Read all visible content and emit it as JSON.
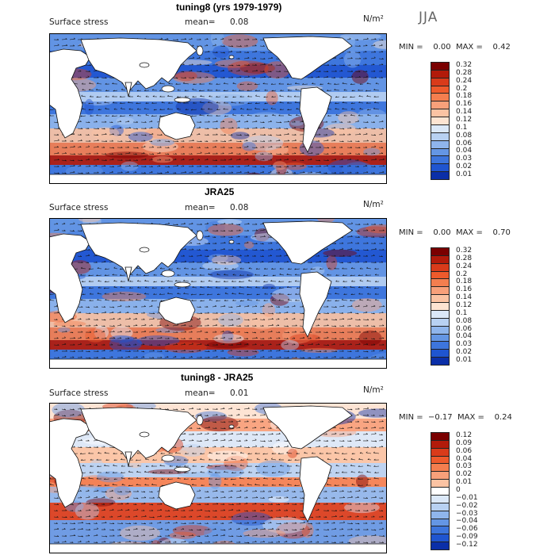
{
  "season": "JJA",
  "panels": [
    {
      "title": "tuning8 (yrs 1979-1979)",
      "field": "Surface stress",
      "mean_label": "mean=",
      "mean_value": "0.08",
      "units": "N/m²",
      "minmax": "MIN =    0.00  MAX =    0.42",
      "colorbar": [
        "0.32",
        "0.28",
        "0.24",
        "0.2",
        "0.18",
        "0.16",
        "0.14",
        "0.12",
        "0.1",
        "0.08",
        "0.06",
        "0.04",
        "0.03",
        "0.02",
        "0.01"
      ]
    },
    {
      "title": "JRA25",
      "field": "Surface stress",
      "mean_label": "mean=",
      "mean_value": "0.08",
      "units": "N/m²",
      "minmax": "MIN =    0.00  MAX =    0.70",
      "colorbar": [
        "0.32",
        "0.28",
        "0.24",
        "0.2",
        "0.18",
        "0.16",
        "0.14",
        "0.12",
        "0.1",
        "0.08",
        "0.06",
        "0.04",
        "0.03",
        "0.02",
        "0.01"
      ]
    },
    {
      "title": "tuning8 - JRA25",
      "field": "Surface stress",
      "mean_label": "mean=",
      "mean_value": "0.01",
      "units": "N/m²",
      "minmax": "MIN =  −0.17  MAX =    0.24",
      "colorbar": [
        "0.12",
        "0.09",
        "0.06",
        "0.04",
        "0.03",
        "0.02",
        "0.01",
        "0",
        "−0.01",
        "−0.02",
        "−0.03",
        "−0.04",
        "−0.06",
        "−0.09",
        "−0.12"
      ]
    }
  ],
  "colors": {
    "scale": [
      "#7a0000",
      "#b21a0a",
      "#d93b1a",
      "#ee5a2c",
      "#f47e4f",
      "#f8a07a",
      "#fbc3a3",
      "#fde4d2",
      "#dbe8f8",
      "#b8d1f2",
      "#8fb5ec",
      "#6496e4",
      "#3d75dc",
      "#1f55d0",
      "#0b2fa8"
    ],
    "diff_scale": [
      "#7a0000",
      "#b21a0a",
      "#d93b1a",
      "#ee5a2c",
      "#f47e4f",
      "#f8a07a",
      "#fbc3a3",
      "#ffffff",
      "#dbe8f8",
      "#b8d1f2",
      "#8fb5ec",
      "#6496e4",
      "#3d75dc",
      "#1f55d0",
      "#0b2fa8"
    ],
    "land": "#ffffff"
  }
}
